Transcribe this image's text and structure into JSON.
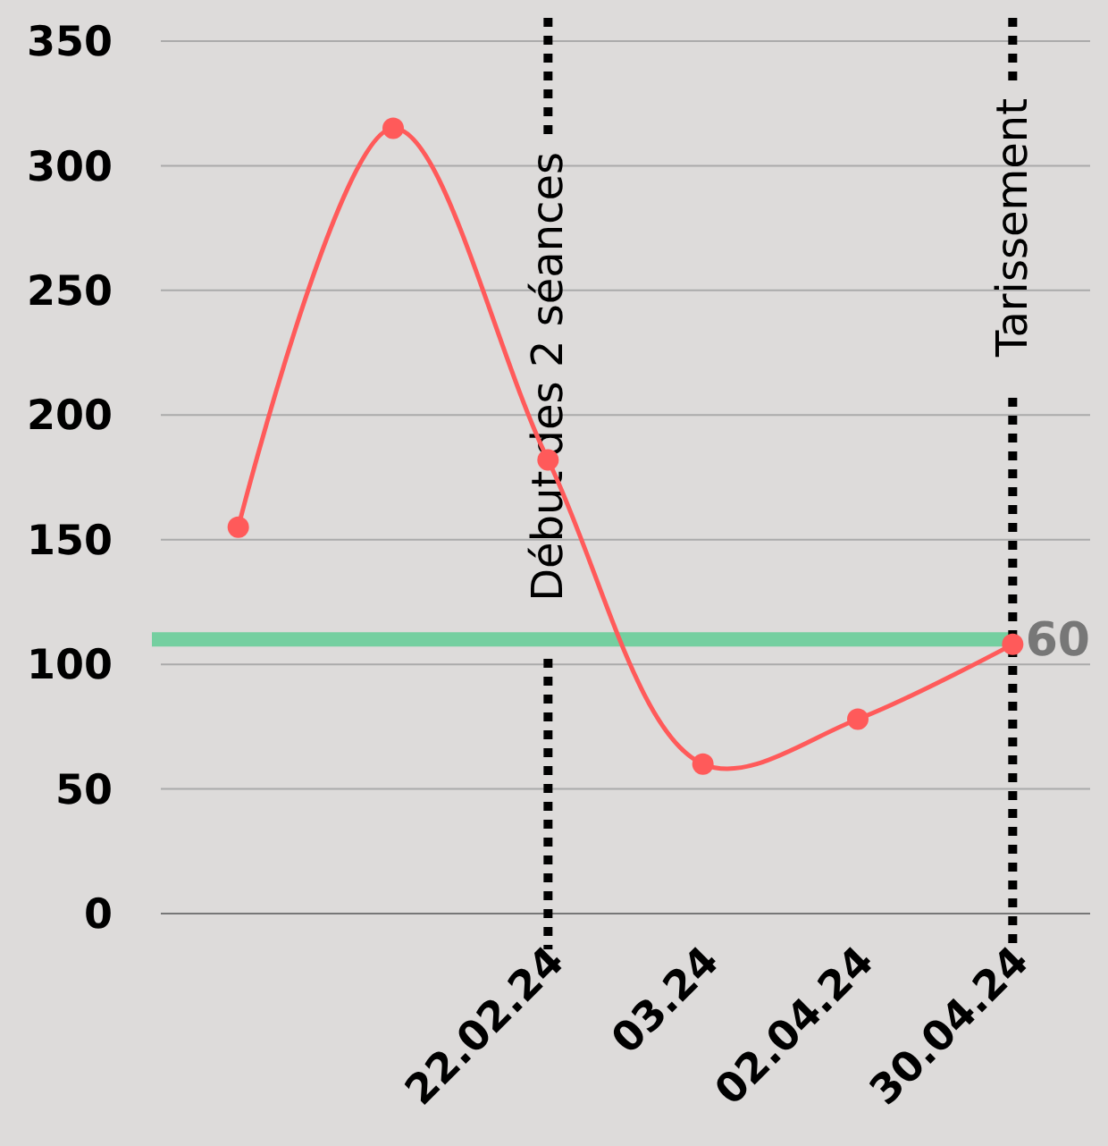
{
  "chart_data": {
    "type": "line",
    "categories": [
      null,
      null,
      "22.02.24",
      "03.24",
      "02.04.24",
      "30.04.24"
    ],
    "series": [
      {
        "color": "#ff5a5a",
        "values": [
          155,
          315,
          182,
          60,
          78,
          108
        ]
      }
    ],
    "ylim": [
      0,
      350
    ],
    "yticks": [
      0,
      50,
      100,
      150,
      200,
      250,
      300,
      350
    ],
    "grid": "y",
    "marker": "circle",
    "line_style": "solid",
    "ref_lines": [
      {
        "axis": "y",
        "value": 110,
        "color": "#74cfa0",
        "line_style": "solid"
      },
      {
        "axis": "x",
        "value": "22.02.24",
        "label": "Début des 2 séances",
        "color": "#000000",
        "line_style": "dotted"
      },
      {
        "axis": "x",
        "value": "30.04.24",
        "label": "Tarissement",
        "color": "#000000",
        "line_style": "dotted"
      }
    ],
    "annotations": [
      "60"
    ]
  }
}
